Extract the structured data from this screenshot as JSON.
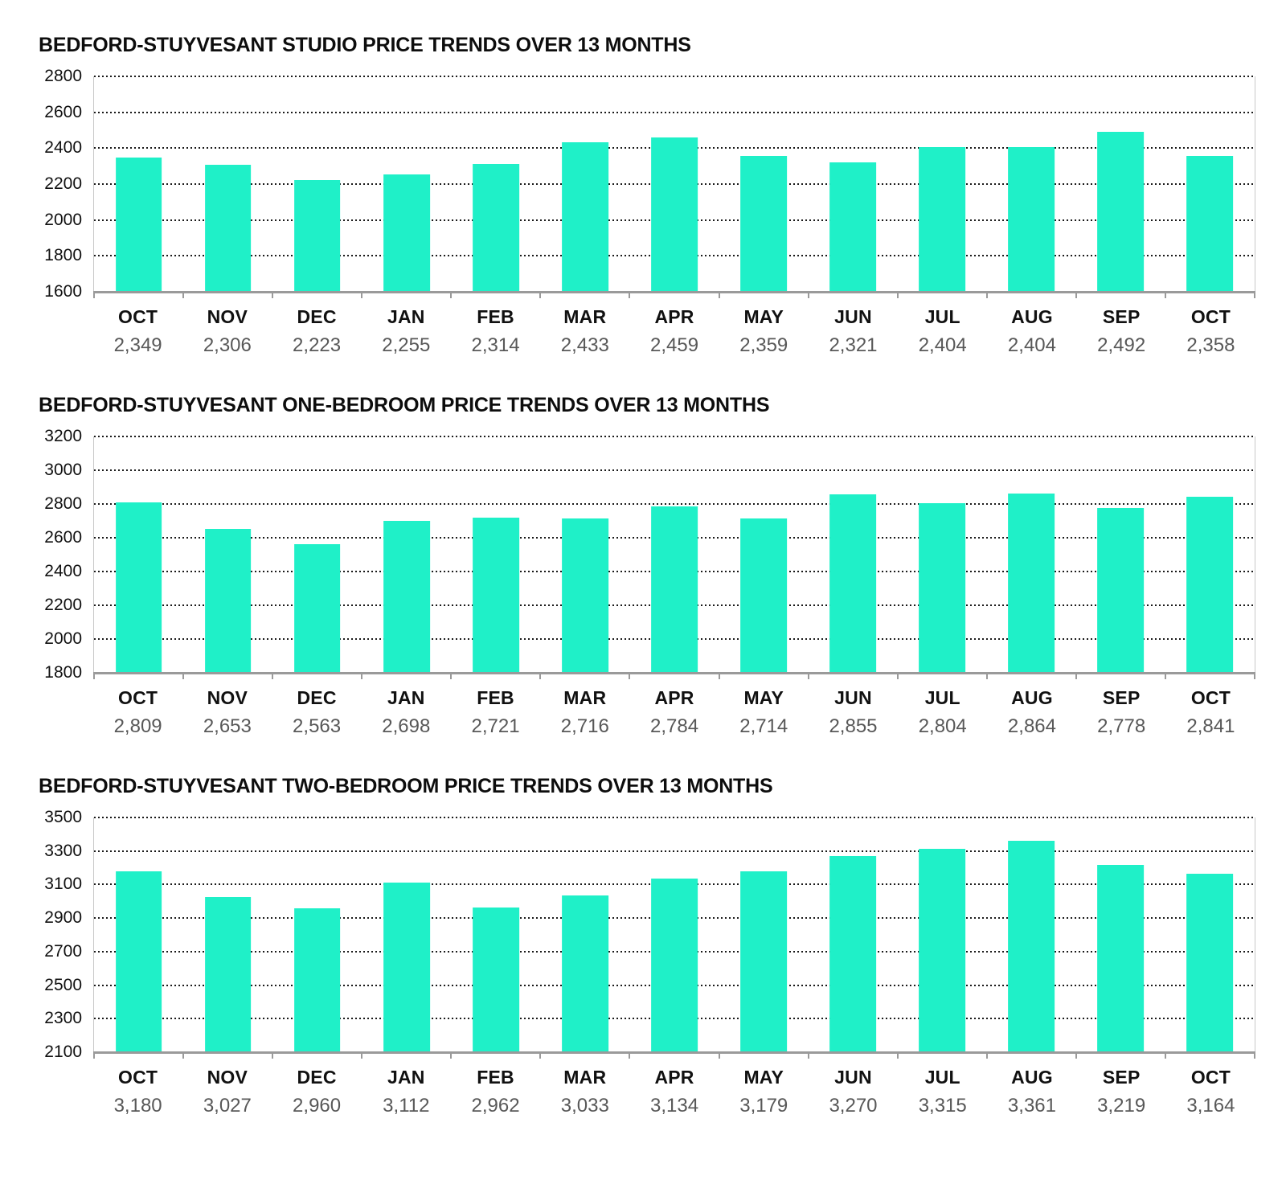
{
  "page": {
    "background": "#ffffff"
  },
  "chart_data": [
    {
      "type": "bar",
      "title": "BEDFORD-STUYVESANT STUDIO PRICE TRENDS OVER 13 MONTHS",
      "categories": [
        "OCT",
        "NOV",
        "DEC",
        "JAN",
        "FEB",
        "MAR",
        "APR",
        "MAY",
        "JUN",
        "JUL",
        "AUG",
        "SEP",
        "OCT"
      ],
      "values": [
        2349,
        2306,
        2223,
        2255,
        2314,
        2433,
        2459,
        2359,
        2321,
        2404,
        2404,
        2492,
        2358
      ],
      "value_labels": [
        "2,349",
        "2,306",
        "2,223",
        "2,255",
        "2,314",
        "2,433",
        "2,459",
        "2,359",
        "2,321",
        "2,404",
        "2,404",
        "2,492",
        "2,358"
      ],
      "xlabel": "",
      "ylabel": "",
      "ylim": [
        1600,
        2800
      ],
      "ytick_step": 200,
      "yticks": [
        1600,
        1800,
        2000,
        2200,
        2400,
        2600,
        2800
      ],
      "grid": "dotted-horizontal",
      "legend": "none",
      "bar_color": "#1ff0c8"
    },
    {
      "type": "bar",
      "title": "BEDFORD-STUYVESANT ONE-BEDROOM PRICE TRENDS OVER 13 MONTHS",
      "categories": [
        "OCT",
        "NOV",
        "DEC",
        "JAN",
        "FEB",
        "MAR",
        "APR",
        "MAY",
        "JUN",
        "JUL",
        "AUG",
        "SEP",
        "OCT"
      ],
      "values": [
        2809,
        2653,
        2563,
        2698,
        2721,
        2716,
        2784,
        2714,
        2855,
        2804,
        2864,
        2778,
        2841
      ],
      "value_labels": [
        "2,809",
        "2,653",
        "2,563",
        "2,698",
        "2,721",
        "2,716",
        "2,784",
        "2,714",
        "2,855",
        "2,804",
        "2,864",
        "2,778",
        "2,841"
      ],
      "xlabel": "",
      "ylabel": "",
      "ylim": [
        1800,
        3200
      ],
      "ytick_step": 200,
      "yticks": [
        1800,
        2000,
        2200,
        2400,
        2600,
        2800,
        3000,
        3200
      ],
      "grid": "dotted-horizontal",
      "legend": "none",
      "bar_color": "#1ff0c8"
    },
    {
      "type": "bar",
      "title": "BEDFORD-STUYVESANT TWO-BEDROOM PRICE TRENDS OVER 13 MONTHS",
      "categories": [
        "OCT",
        "NOV",
        "DEC",
        "JAN",
        "FEB",
        "MAR",
        "APR",
        "MAY",
        "JUN",
        "JUL",
        "AUG",
        "SEP",
        "OCT"
      ],
      "values": [
        3180,
        3027,
        2960,
        3112,
        2962,
        3033,
        3134,
        3179,
        3270,
        3315,
        3361,
        3219,
        3164
      ],
      "value_labels": [
        "3,180",
        "3,027",
        "2,960",
        "3,112",
        "2,962",
        "3,033",
        "3,134",
        "3,179",
        "3,270",
        "3,315",
        "3,361",
        "3,219",
        "3,164"
      ],
      "xlabel": "",
      "ylabel": "",
      "ylim": [
        2100,
        3500
      ],
      "ytick_step": 200,
      "yticks": [
        2100,
        2300,
        2500,
        2700,
        2900,
        3100,
        3300,
        3500
      ],
      "grid": "dotted-horizontal",
      "legend": "none",
      "bar_color": "#1ff0c8"
    }
  ]
}
